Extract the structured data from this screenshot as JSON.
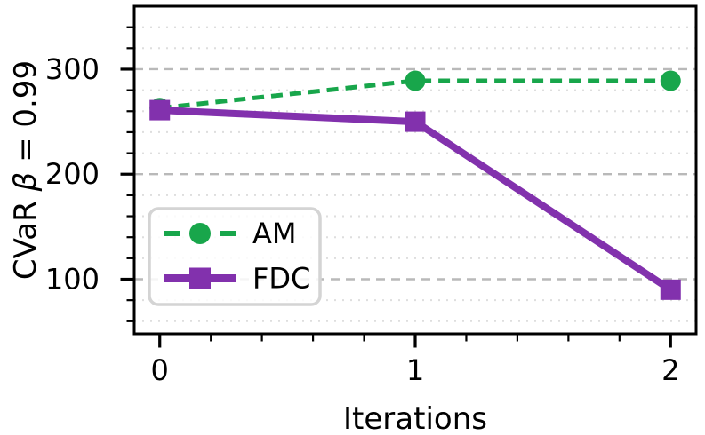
{
  "chart_data": {
    "type": "line",
    "title": "",
    "xlabel": "Iterations",
    "ylabel": "CVaR β = 0.99",
    "x": [
      0,
      1,
      2
    ],
    "series": [
      {
        "name": "AM",
        "color": "#18a64b",
        "linestyle": "dashed",
        "marker": "circle",
        "line_width": 5,
        "values": [
          263,
          289,
          289
        ]
      },
      {
        "name": "FDC",
        "color": "#8231ad",
        "linestyle": "solid",
        "marker": "square",
        "line_width": 8,
        "values": [
          261,
          250,
          90
        ]
      }
    ],
    "xlim": [
      -0.1,
      2.1
    ],
    "ylim": [
      48,
      360
    ],
    "x_major_ticks": [
      0,
      1,
      2
    ],
    "y_major_ticks": [
      100,
      200,
      300
    ],
    "x_minor_step": 0.2,
    "y_minor_step": 20,
    "grid": {
      "axis": "y",
      "major_style": "dashed",
      "minor_style": "dotted"
    },
    "legend": {
      "position": "lower left",
      "entries": [
        "AM",
        "FDC"
      ]
    },
    "colors": {
      "grid_major": "#b9b9b9",
      "grid_minor": "#dedede",
      "spine": "#000000",
      "text": "#000000",
      "legend_border": "#d4d4d4",
      "legend_bg": "#ffffff"
    }
  }
}
